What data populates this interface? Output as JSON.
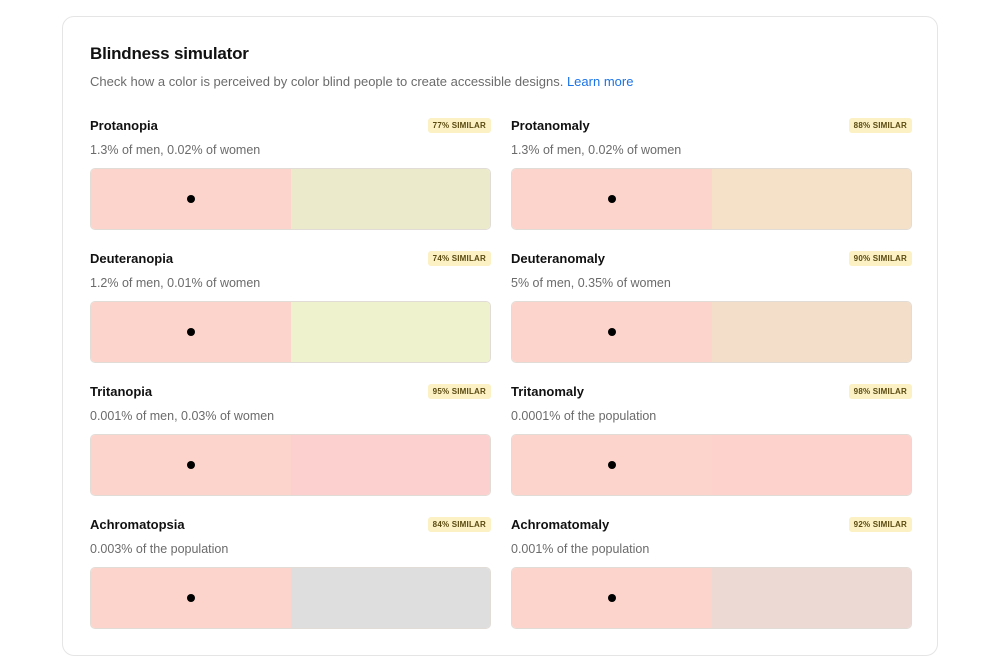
{
  "header": {
    "title": "Blindness simulator",
    "description": "Check how a color is perceived by color blind people to create accessible designs.",
    "learn_more": "Learn more"
  },
  "original_color": "#fdd4cb",
  "items": [
    {
      "name": "Protanopia",
      "similar": "77% SIMILAR",
      "stat": "1.3% of men, 0.02% of women",
      "color": "#ebebcc"
    },
    {
      "name": "Protanomaly",
      "similar": "88% SIMILAR",
      "stat": "1.3% of men, 0.02% of women",
      "color": "#f4e1c8"
    },
    {
      "name": "Deuteranopia",
      "similar": "74% SIMILAR",
      "stat": "1.2% of men, 0.01% of women",
      "color": "#eef2cd"
    },
    {
      "name": "Deuteranomaly",
      "similar": "90% SIMILAR",
      "stat": "5% of men, 0.35% of women",
      "color": "#f3dec9"
    },
    {
      "name": "Tritanopia",
      "similar": "95% SIMILAR",
      "stat": "0.001% of men, 0.03% of women",
      "color": "#fcd0ce"
    },
    {
      "name": "Tritanomaly",
      "similar": "98% SIMILAR",
      "stat": "0.0001% of the population",
      "color": "#fdd2cc"
    },
    {
      "name": "Achromatopsia",
      "similar": "84% SIMILAR",
      "stat": "0.003% of the population",
      "color": "#dedede"
    },
    {
      "name": "Achromatomaly",
      "similar": "92% SIMILAR",
      "stat": "0.001% of the population",
      "color": "#ecd9d4"
    }
  ]
}
